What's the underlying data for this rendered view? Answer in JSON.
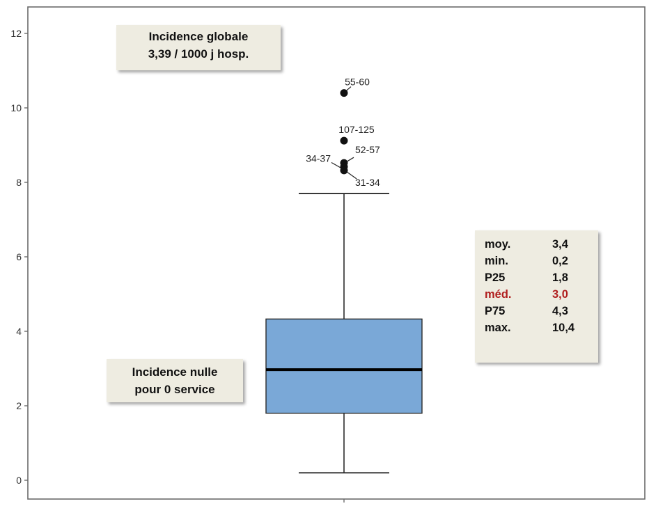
{
  "chart_data": {
    "type": "boxplot",
    "yticks": [
      0,
      2,
      4,
      6,
      8,
      10,
      12
    ],
    "ylim": [
      -0.5,
      12.6
    ],
    "box": {
      "min": 0.2,
      "q1": 1.8,
      "median": 2.97,
      "q3": 4.33,
      "whisker_high": 7.7,
      "max": 10.4
    },
    "outliers": [
      {
        "label": "55-60",
        "value": 10.4
      },
      {
        "label": "107-125",
        "value": 9.12
      },
      {
        "label": "52-57",
        "value": 8.52
      },
      {
        "label": "34-37",
        "value": 8.42
      },
      {
        "label": "31-34",
        "value": 8.32
      }
    ],
    "colors": {
      "box_fill": "#7aa8d7",
      "box_stroke": "#2b2b2b",
      "median": "#000000",
      "axis": "#6b6b6b",
      "note_bg": "#eeece1",
      "highlight": "#b01e1e"
    }
  },
  "notes": {
    "global_line1": "Incidence globale",
    "global_line2": "3,39 / 1000 j hosp.",
    "null_line1": "Incidence nulle",
    "null_line2": "pour 0 service"
  },
  "stats": [
    {
      "label": "moy.",
      "value": "3,4",
      "highlight": false
    },
    {
      "label": "min.",
      "value": "0,2",
      "highlight": false
    },
    {
      "label": "P25",
      "value": "1,8",
      "highlight": false
    },
    {
      "label": "méd.",
      "value": "3,0",
      "highlight": true
    },
    {
      "label": "P75",
      "value": "4,3",
      "highlight": false
    },
    {
      "label": "max.",
      "value": "10,4",
      "highlight": false
    }
  ]
}
